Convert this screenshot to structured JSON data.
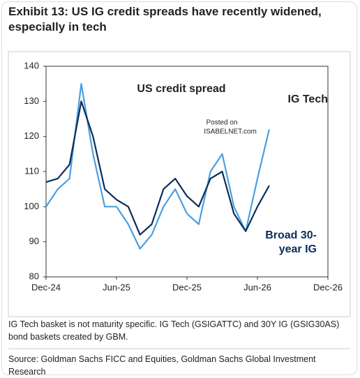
{
  "chart_data": {
    "type": "line",
    "title": "Exhibit 13: US IG credit spreads have recently widened, especially in tech",
    "subtitle": "US credit spread",
    "watermark": [
      "Posted on",
      "ISABELNET.com"
    ],
    "footnote": "IG Tech basket is not maturity specific. IG Tech (GSIGATTC) and 30Y IG (GSIG30AS) bond baskets created by GBM.",
    "source": "Source: Goldman Sachs FICC and Equities, Goldman Sachs Global Investment Research",
    "x": [
      "2024-12",
      "2025-01",
      "2025-02",
      "2025-03",
      "2025-04",
      "2025-05",
      "2025-06",
      "2025-07",
      "2025-08",
      "2025-09",
      "2025-10",
      "2025-11",
      "2025-12",
      "2026-01",
      "2026-02",
      "2026-03",
      "2026-04",
      "2026-05",
      "2026-06",
      "2026-07"
    ],
    "series": [
      {
        "name": "IG Tech",
        "color": "#4a9fe0",
        "values": [
          100,
          105,
          108,
          135,
          115,
          100,
          100,
          95,
          88,
          92,
          100,
          105,
          98,
          95,
          110,
          115,
          100,
          93,
          108,
          122
        ]
      },
      {
        "name": "Broad 30-year IG",
        "color": "#0b2d5b",
        "values": [
          107,
          108,
          112,
          130,
          120,
          105,
          102,
          100,
          92,
          95,
          105,
          108,
          103,
          100,
          108,
          110,
          98,
          93,
          100,
          106
        ]
      }
    ],
    "xlim": [
      "2024-12",
      "2026-12"
    ],
    "xticks": [
      {
        "value": "2024-12",
        "label": "Dec-24"
      },
      {
        "value": "2025-06",
        "label": "Jun-25"
      },
      {
        "value": "2025-12",
        "label": "Dec-25"
      },
      {
        "value": "2026-06",
        "label": "Jun-26"
      },
      {
        "value": "2026-12",
        "label": "Dec-26"
      }
    ],
    "ylim": [
      80,
      140
    ],
    "yticks": [
      80,
      90,
      100,
      110,
      120,
      130,
      140
    ],
    "grid": false
  }
}
